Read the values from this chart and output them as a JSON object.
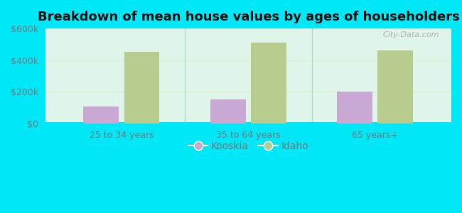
{
  "title": "Breakdown of mean house values by ages of householders",
  "categories": [
    "25 to 34 years",
    "35 to 64 years",
    "65 years+"
  ],
  "kooskia_values": [
    110000,
    155000,
    200000
  ],
  "idaho_values": [
    455000,
    510000,
    460000
  ],
  "ylim": [
    0,
    600000
  ],
  "yticks": [
    0,
    200000,
    400000,
    600000
  ],
  "ytick_labels": [
    "$0",
    "$200k",
    "$400k",
    "$600k"
  ],
  "kooskia_color": "#c9a8d4",
  "idaho_color": "#b8cc8f",
  "background_grad_left": "#c8f0e0",
  "background_grad_right": "#f0fff8",
  "outer_background": "#00e8f8",
  "legend_kooskia": "Kooskia",
  "legend_idaho": "Idaho",
  "bar_width": 0.28,
  "title_fontsize": 13,
  "axis_label_fontsize": 9,
  "tick_fontsize": 9,
  "legend_fontsize": 10,
  "separator_color": "#aaddcc",
  "grid_color": "#ddeecc",
  "text_color": "#777777"
}
